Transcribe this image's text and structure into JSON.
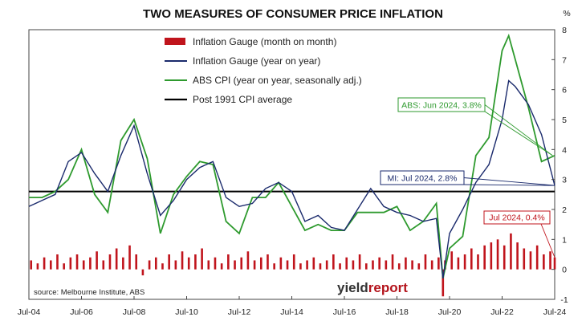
{
  "chart_data": {
    "type": "line",
    "title": "TWO MEASURES OF CONSUMER PRICE INFLATION",
    "ylabel": "%",
    "ylim": [
      -1,
      8
    ],
    "yticks": [
      -1,
      0,
      1,
      2,
      3,
      4,
      5,
      6,
      7,
      8
    ],
    "xlim": [
      "2004-07",
      "2024-07"
    ],
    "xticks": [
      "Jul-04",
      "Jul-06",
      "Jul-08",
      "Jul-10",
      "Jul-12",
      "Jul-14",
      "Jul-16",
      "Jul-18",
      "Jul-20",
      "Jul-22",
      "Jul-24"
    ],
    "legend_position": "top-center",
    "grid": false,
    "series": [
      {
        "name": "Inflation Gauge (month on month)",
        "kind": "bar",
        "color": "#c0141c",
        "x": [
          "2004-08",
          "2004-11",
          "2005-02",
          "2005-05",
          "2005-08",
          "2005-11",
          "2006-02",
          "2006-05",
          "2006-08",
          "2006-11",
          "2007-02",
          "2007-05",
          "2007-08",
          "2007-11",
          "2008-02",
          "2008-05",
          "2008-08",
          "2008-11",
          "2009-02",
          "2009-05",
          "2009-08",
          "2009-11",
          "2010-02",
          "2010-05",
          "2010-08",
          "2010-11",
          "2011-02",
          "2011-05",
          "2011-08",
          "2011-11",
          "2012-02",
          "2012-05",
          "2012-08",
          "2012-11",
          "2013-02",
          "2013-05",
          "2013-08",
          "2013-11",
          "2014-02",
          "2014-05",
          "2014-08",
          "2014-11",
          "2015-02",
          "2015-05",
          "2015-08",
          "2015-11",
          "2016-02",
          "2016-05",
          "2016-08",
          "2016-11",
          "2017-02",
          "2017-05",
          "2017-08",
          "2017-11",
          "2018-02",
          "2018-05",
          "2018-08",
          "2018-11",
          "2019-02",
          "2019-05",
          "2019-08",
          "2019-11",
          "2020-02",
          "2020-04",
          "2020-05",
          "2020-08",
          "2020-11",
          "2021-02",
          "2021-05",
          "2021-08",
          "2021-11",
          "2022-02",
          "2022-05",
          "2022-08",
          "2022-11",
          "2023-02",
          "2023-05",
          "2023-08",
          "2023-11",
          "2024-02",
          "2024-05",
          "2024-07"
        ],
        "values": [
          0.3,
          0.2,
          0.4,
          0.3,
          0.5,
          0.2,
          0.4,
          0.5,
          0.3,
          0.4,
          0.6,
          0.3,
          0.5,
          0.7,
          0.4,
          0.8,
          0.5,
          -0.2,
          0.3,
          0.4,
          0.2,
          0.5,
          0.3,
          0.6,
          0.4,
          0.5,
          0.7,
          0.3,
          0.4,
          0.2,
          0.5,
          0.3,
          0.4,
          0.6,
          0.3,
          0.4,
          0.5,
          0.2,
          0.4,
          0.3,
          0.5,
          0.2,
          0.3,
          0.4,
          0.2,
          0.3,
          0.5,
          0.2,
          0.4,
          0.3,
          0.5,
          0.2,
          0.3,
          0.4,
          0.3,
          0.5,
          0.2,
          0.4,
          0.3,
          0.2,
          0.5,
          0.3,
          0.4,
          -0.9,
          0.3,
          0.6,
          0.4,
          0.5,
          0.7,
          0.5,
          0.8,
          0.9,
          1.0,
          0.8,
          1.2,
          0.9,
          0.7,
          0.6,
          0.8,
          0.5,
          0.6,
          0.4
        ]
      },
      {
        "name": "Inflation Gauge (year on year)",
        "kind": "line",
        "color": "#1a2a6c",
        "x": [
          "2004-07",
          "2005-01",
          "2005-07",
          "2006-01",
          "2006-07",
          "2007-01",
          "2007-07",
          "2008-01",
          "2008-07",
          "2009-01",
          "2009-07",
          "2010-01",
          "2010-07",
          "2011-01",
          "2011-07",
          "2012-01",
          "2012-07",
          "2013-01",
          "2013-07",
          "2014-01",
          "2014-07",
          "2015-01",
          "2015-07",
          "2016-01",
          "2016-07",
          "2017-01",
          "2017-07",
          "2018-01",
          "2018-07",
          "2019-01",
          "2019-07",
          "2020-01",
          "2020-04",
          "2020-07",
          "2021-01",
          "2021-07",
          "2022-01",
          "2022-07",
          "2022-10",
          "2023-01",
          "2023-07",
          "2024-01",
          "2024-07"
        ],
        "values": [
          2.1,
          2.3,
          2.5,
          3.6,
          3.9,
          3.2,
          2.6,
          3.8,
          4.8,
          3.2,
          1.8,
          2.3,
          3.0,
          3.4,
          3.6,
          2.4,
          2.1,
          2.2,
          2.7,
          2.9,
          2.6,
          1.6,
          1.8,
          1.4,
          1.3,
          2.0,
          2.7,
          2.1,
          1.9,
          1.8,
          1.6,
          1.7,
          -0.3,
          1.2,
          2.0,
          2.9,
          3.5,
          5.0,
          6.3,
          6.1,
          5.5,
          4.5,
          2.8
        ]
      },
      {
        "name": "ABS CPI (year on year, seasonally adj.)",
        "kind": "line",
        "color": "#2e9a2e",
        "x": [
          "2004-07",
          "2005-01",
          "2005-07",
          "2006-01",
          "2006-07",
          "2007-01",
          "2007-07",
          "2008-01",
          "2008-07",
          "2009-01",
          "2009-07",
          "2010-01",
          "2010-07",
          "2011-01",
          "2011-07",
          "2012-01",
          "2012-07",
          "2013-01",
          "2013-07",
          "2014-01",
          "2014-07",
          "2015-01",
          "2015-07",
          "2016-01",
          "2016-07",
          "2017-01",
          "2017-07",
          "2018-01",
          "2018-07",
          "2019-01",
          "2019-07",
          "2020-01",
          "2020-04",
          "2020-07",
          "2021-01",
          "2021-07",
          "2022-01",
          "2022-07",
          "2022-10",
          "2023-01",
          "2023-07",
          "2024-01",
          "2024-07"
        ],
        "values": [
          2.4,
          2.4,
          2.6,
          3.0,
          4.0,
          2.5,
          1.9,
          4.3,
          5.0,
          3.7,
          1.2,
          2.5,
          3.1,
          3.6,
          3.5,
          1.6,
          1.2,
          2.4,
          2.4,
          2.9,
          2.1,
          1.3,
          1.5,
          1.3,
          1.3,
          1.9,
          1.9,
          1.9,
          2.1,
          1.3,
          1.6,
          2.2,
          -0.3,
          0.7,
          1.1,
          3.8,
          4.4,
          7.3,
          7.8,
          7.0,
          5.4,
          3.6,
          3.8
        ]
      },
      {
        "name": "Post 1991 CPI average",
        "kind": "reference",
        "color": "#000000",
        "value": 2.6
      }
    ],
    "annotations": [
      {
        "text": "ABS: Jun 2024, 3.8%",
        "color": "#2e9a2e",
        "target_x": "2024-06",
        "target_y": 3.8
      },
      {
        "text": "MI: Jul 2024, 2.8%",
        "color": "#1a2a6c",
        "target_x": "2024-07",
        "target_y": 2.8
      },
      {
        "text": "Jul 2024, 0.4%",
        "color": "#c0141c",
        "target_x": "2024-07",
        "target_y": 0.4
      }
    ]
  },
  "footer": {
    "source": "source: Melbourne Institute, ABS",
    "logo_part1": "yield",
    "logo_part2": "report"
  }
}
